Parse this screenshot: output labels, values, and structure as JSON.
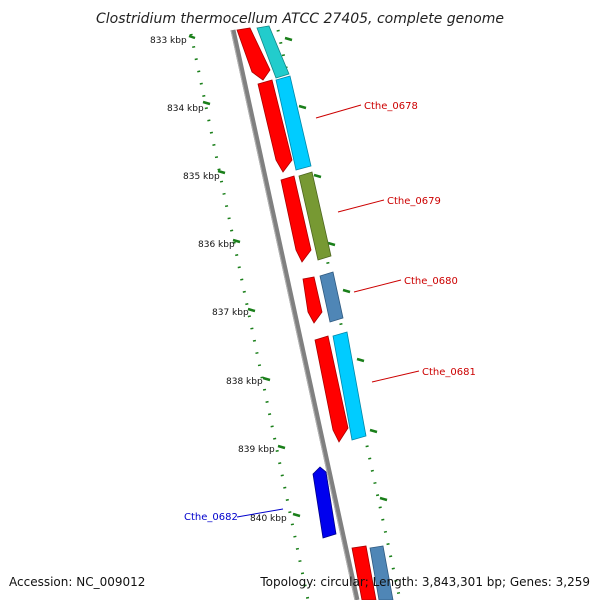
{
  "title": "Clostridium thermocellum ATCC 27405, complete genome",
  "footer": {
    "accession": "Accession: NC_009012",
    "topology": "Topology: circular; Length: 3,843,301 bp; Genes: 3,259"
  },
  "colors": {
    "cds_red": "#ff0000",
    "cds_cyan": "#00ccff",
    "cds_teal": "#22cccc",
    "cds_olive": "#779933",
    "cds_steel": "#4f86b6",
    "cds_blue": "#0000ee",
    "tick_green": "#1a7f1a",
    "backbone_gray": "#808080",
    "label_red": "#cc0000",
    "label_blue": "#0000cc"
  },
  "ticks": [
    "833 kbp",
    "834 kbp",
    "835 kbp",
    "836 kbp",
    "837 kbp",
    "838 kbp",
    "839 kbp",
    "840 kbp"
  ],
  "gene_labels": [
    {
      "name": "Cthe_0678",
      "color": "label_red"
    },
    {
      "name": "Cthe_0679",
      "color": "label_red"
    },
    {
      "name": "Cthe_0680",
      "color": "label_red"
    },
    {
      "name": "Cthe_0681",
      "color": "label_red"
    },
    {
      "name": "Cthe_0682",
      "color": "label_blue"
    }
  ]
}
